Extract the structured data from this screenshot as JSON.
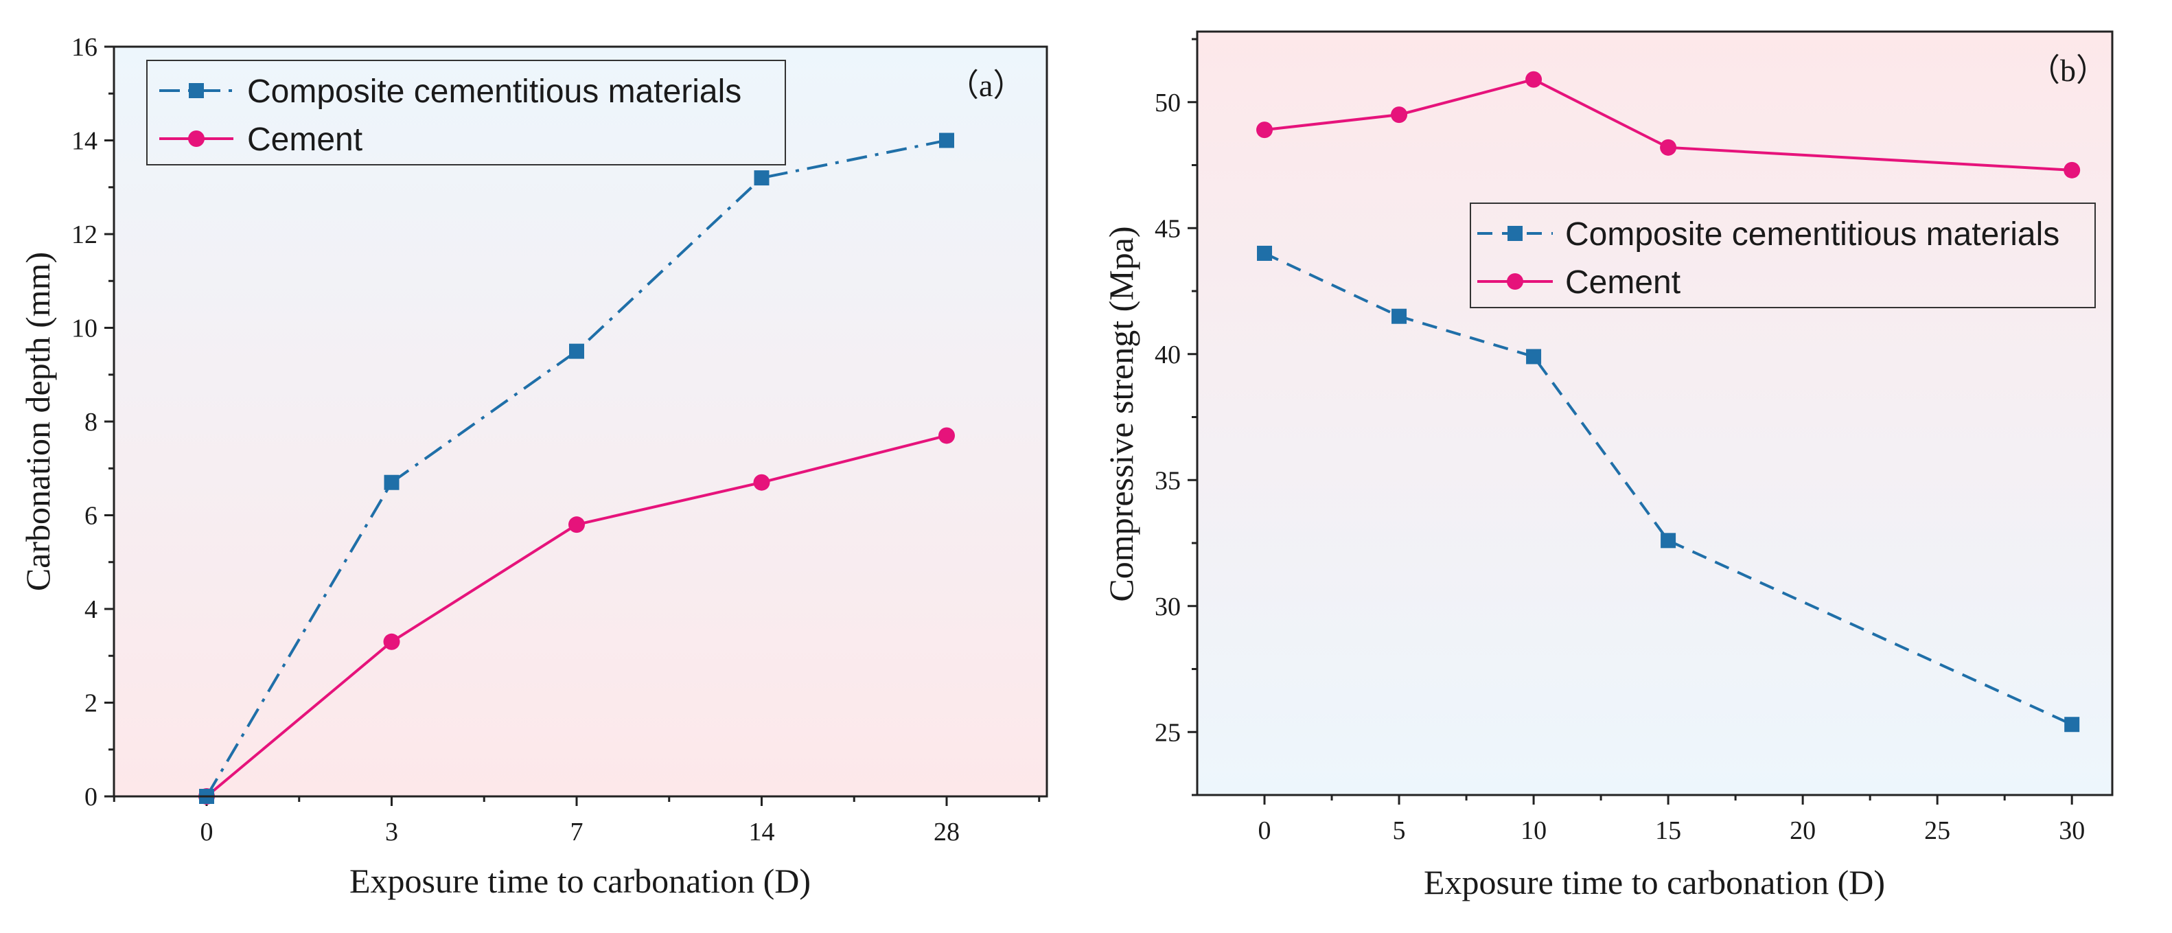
{
  "colors": {
    "composite": "#1f6fa8",
    "cement": "#e6137b",
    "bg_blue": "#eef6fb",
    "bg_pink": "#fde9ea"
  },
  "chart_data": [
    {
      "type": "line",
      "panel": "(a)",
      "panel_label": "（a）",
      "xlabel": "Exposure time to carbonation (D)",
      "ylabel": "Carbonation depth (mm)",
      "categories": [
        "0",
        "3",
        "7",
        "14",
        "28"
      ],
      "ylim": [
        0,
        16
      ],
      "yticks": [
        0,
        2,
        4,
        6,
        8,
        10,
        12,
        14,
        16
      ],
      "legend_position": "top-left",
      "background_gradient": "blue-top-to-pink-bottom",
      "series": [
        {
          "name": "Composite cementitious materials",
          "marker": "square",
          "line_style": "dash-dot",
          "color": "#1f6fa8",
          "values": [
            0,
            6.7,
            9.5,
            13.2,
            14.0
          ]
        },
        {
          "name": "Cement",
          "marker": "circle",
          "line_style": "solid",
          "color": "#e6137b",
          "values": [
            0,
            3.3,
            5.8,
            6.7,
            7.7
          ]
        }
      ]
    },
    {
      "type": "line",
      "panel": "(b)",
      "panel_label": "（b）",
      "xlabel": "Exposure time to carbonation (D)",
      "ylabel": "Compressive strengt (Mpa)",
      "x_ticks": [
        0,
        5,
        10,
        15,
        20,
        25,
        30
      ],
      "xlim": [
        -2.5,
        31.5
      ],
      "ylim": [
        22.5,
        52.8
      ],
      "yticks": [
        25,
        30,
        35,
        40,
        45,
        50
      ],
      "legend_position": "middle-right",
      "background_gradient": "pink-top-to-blue-bottom",
      "series": [
        {
          "name": "Composite cementitious materials",
          "marker": "square",
          "line_style": "dashed",
          "color": "#1f6fa8",
          "x": [
            0,
            5,
            10,
            15,
            30
          ],
          "values": [
            44.0,
            41.5,
            39.9,
            32.6,
            25.3
          ]
        },
        {
          "name": "Cement",
          "marker": "circle",
          "line_style": "solid",
          "color": "#e6137b",
          "x": [
            0,
            5,
            10,
            15,
            30
          ],
          "values": [
            48.9,
            49.5,
            50.9,
            48.2,
            47.3
          ]
        }
      ]
    }
  ]
}
